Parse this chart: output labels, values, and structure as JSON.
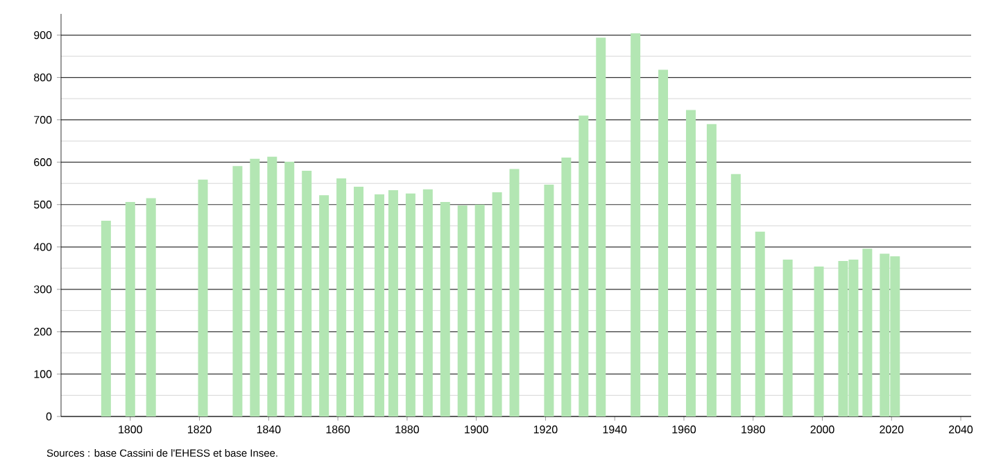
{
  "chart_data": {
    "type": "bar",
    "x": [
      1793,
      1800,
      1806,
      1821,
      1831,
      1836,
      1841,
      1846,
      1851,
      1856,
      1861,
      1866,
      1872,
      1876,
      1881,
      1886,
      1891,
      1896,
      1901,
      1906,
      1911,
      1921,
      1926,
      1931,
      1936,
      1946,
      1954,
      1962,
      1968,
      1975,
      1982,
      1990,
      1999,
      2006,
      2009,
      2013,
      2018,
      2021
    ],
    "values": [
      462,
      506,
      515,
      559,
      591,
      608,
      613,
      601,
      580,
      522,
      562,
      542,
      524,
      534,
      526,
      536,
      506,
      498,
      500,
      529,
      584,
      547,
      611,
      710,
      894,
      904,
      818,
      723,
      690,
      572,
      436,
      370,
      354,
      367,
      370,
      396,
      384,
      378
    ],
    "color": "#b3e6b3",
    "xlim": [
      1780,
      2043
    ],
    "xticks": [
      1800,
      1820,
      1840,
      1860,
      1880,
      1900,
      1920,
      1940,
      1960,
      1980,
      2000,
      2020,
      2040
    ],
    "ylim": [
      0,
      950
    ],
    "yticks": [
      0,
      100,
      200,
      300,
      400,
      500,
      600,
      700,
      800,
      900
    ],
    "grid": "y",
    "annotations": [
      "Sources : base Cassini de l'EHESS et base Insee."
    ]
  }
}
